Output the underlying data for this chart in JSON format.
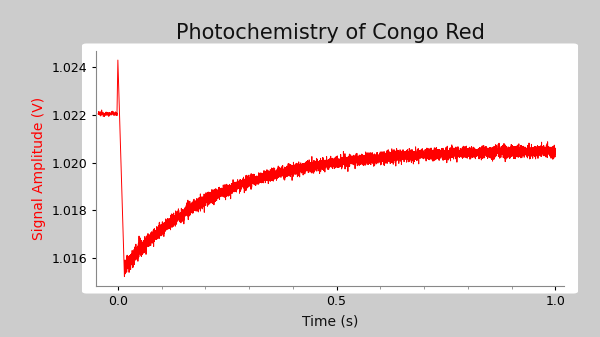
{
  "title": "Photochemistry of Congo Red",
  "xlabel": "Time (s)",
  "ylabel": "Signal Amplitude (V)",
  "line_color": "#FF0000",
  "ylabel_color": "#FF0000",
  "title_color": "#111111",
  "xlabel_color": "#111111",
  "background_color": "#FFFFFF",
  "figure_background": "#CCCCCC",
  "xlim": [
    -0.05,
    1.02
  ],
  "ylim": [
    1.0148,
    1.0247
  ],
  "yticks": [
    1.016,
    1.018,
    1.02,
    1.022,
    1.024
  ],
  "xticks": [
    0,
    0.5,
    1.0
  ],
  "noise_level": 0.00012,
  "pre_event_level": 1.02205,
  "spike_level": 1.0243,
  "drop_level": 1.01525,
  "recovery_level": 1.02055,
  "tau": 0.22,
  "n_points_pre": 120,
  "n_points_post": 8000,
  "title_fontsize": 15,
  "label_fontsize": 10,
  "tick_fontsize": 9
}
